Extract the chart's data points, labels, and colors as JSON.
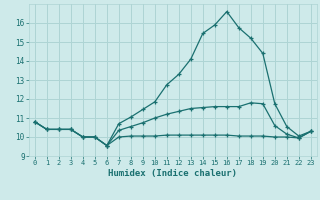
{
  "xlabel": "Humidex (Indice chaleur)",
  "bg_color": "#ceeaea",
  "grid_color": "#aed4d4",
  "line_color": "#1a7070",
  "xlim": [
    -0.5,
    23.5
  ],
  "ylim": [
    9,
    17
  ],
  "yticks": [
    9,
    10,
    11,
    12,
    13,
    14,
    15,
    16
  ],
  "xticks": [
    0,
    1,
    2,
    3,
    4,
    5,
    6,
    7,
    8,
    9,
    10,
    11,
    12,
    13,
    14,
    15,
    16,
    17,
    18,
    19,
    20,
    21,
    22,
    23
  ],
  "line1_x": [
    0,
    1,
    2,
    3,
    4,
    5,
    6,
    7,
    8,
    9,
    10,
    11,
    12,
    13,
    14,
    15,
    16,
    17,
    18,
    19,
    20,
    21,
    22,
    23
  ],
  "line1_y": [
    10.8,
    10.4,
    10.4,
    10.4,
    10.0,
    10.0,
    9.55,
    10.7,
    11.05,
    11.45,
    11.85,
    12.75,
    13.3,
    14.1,
    15.45,
    15.9,
    16.6,
    15.75,
    15.2,
    14.4,
    11.75,
    10.55,
    10.05,
    10.3
  ],
  "line2_x": [
    0,
    1,
    2,
    3,
    4,
    5,
    6,
    7,
    8,
    9,
    10,
    11,
    12,
    13,
    14,
    15,
    16,
    17,
    18,
    19,
    20,
    21,
    22,
    23
  ],
  "line2_y": [
    10.8,
    10.4,
    10.4,
    10.4,
    10.0,
    10.0,
    9.55,
    10.35,
    10.55,
    10.75,
    11.0,
    11.2,
    11.35,
    11.5,
    11.55,
    11.6,
    11.6,
    11.6,
    11.8,
    11.75,
    10.6,
    10.15,
    9.95,
    10.3
  ],
  "line3_x": [
    0,
    1,
    2,
    3,
    4,
    5,
    6,
    7,
    8,
    9,
    10,
    11,
    12,
    13,
    14,
    15,
    16,
    17,
    18,
    19,
    20,
    21,
    22,
    23
  ],
  "line3_y": [
    10.8,
    10.4,
    10.4,
    10.4,
    10.0,
    10.0,
    9.55,
    10.0,
    10.05,
    10.05,
    10.05,
    10.1,
    10.1,
    10.1,
    10.1,
    10.1,
    10.1,
    10.05,
    10.05,
    10.05,
    10.0,
    10.0,
    9.95,
    10.3
  ]
}
